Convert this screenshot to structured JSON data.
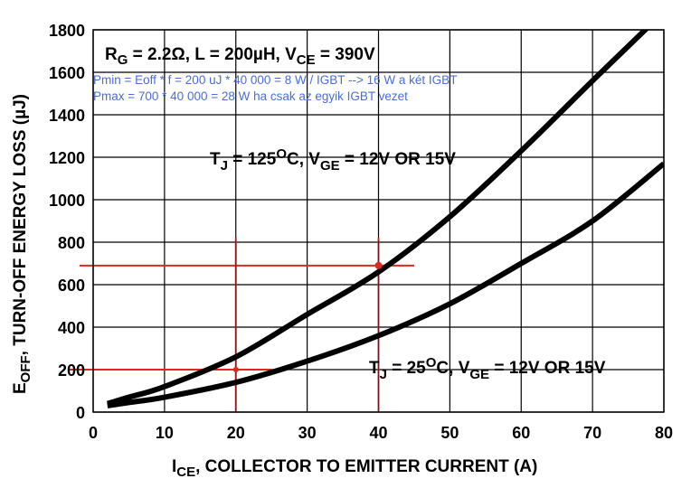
{
  "chart_data": {
    "type": "line",
    "xlabel": {
      "main": "I",
      "sub": "CE",
      "rest": ", COLLECTOR TO EMITTER CURRENT (A)"
    },
    "ylabel": {
      "main": "E",
      "sub": "OFF",
      "rest": ", TURN-OFF ENERGY LOSS (µJ)"
    },
    "xlim": [
      0,
      80
    ],
    "ylim": [
      0,
      1800
    ],
    "xticks": [
      "0",
      "10",
      "20",
      "30",
      "40",
      "50",
      "60",
      "70",
      "80"
    ],
    "yticks": [
      "0",
      "200",
      "400",
      "600",
      "800",
      "1000",
      "1200",
      "1400",
      "1600",
      "1800"
    ],
    "grid": true,
    "conditions": {
      "r": "R",
      "r_sub": "G",
      "r_val": " = 2.2Ω, L = 200µH, V",
      "v_sub": "CE",
      "v_val": " = 390V"
    },
    "notes": [
      "Pmin = Eoff * f = 200 uJ * 40 000 = 8 W / IGBT --> 16 W a két IGBT",
      "Pmax = 700 * 40 000 = 28 W ha csak az egyik IGBT vezet"
    ],
    "series": [
      {
        "label_t": "T",
        "label_t_sub": "J",
        "label_temp": " = 125",
        "label_deg": "O",
        "label_c": "C, V",
        "label_v_sub": "GE",
        "label_v": " = 12V OR 15V",
        "x": [
          2,
          5,
          10,
          20,
          30,
          40,
          50,
          60,
          70,
          78
        ],
        "y": [
          40,
          70,
          120,
          260,
          460,
          660,
          920,
          1230,
          1560,
          1820
        ]
      },
      {
        "label_t": "T",
        "label_t_sub": "J",
        "label_temp": " = 25",
        "label_deg": "O",
        "label_c": "C, V",
        "label_v_sub": "GE",
        "label_v": " = 12V OR 15V",
        "x": [
          2,
          5,
          10,
          20,
          30,
          40,
          50,
          60,
          70,
          80
        ],
        "y": [
          30,
          45,
          70,
          140,
          240,
          360,
          510,
          700,
          900,
          1170
        ]
      }
    ],
    "annotations": {
      "color": "#e0261e",
      "points": [
        {
          "x": 20,
          "y": 200
        },
        {
          "x": 40,
          "y": 690
        }
      ]
    }
  }
}
